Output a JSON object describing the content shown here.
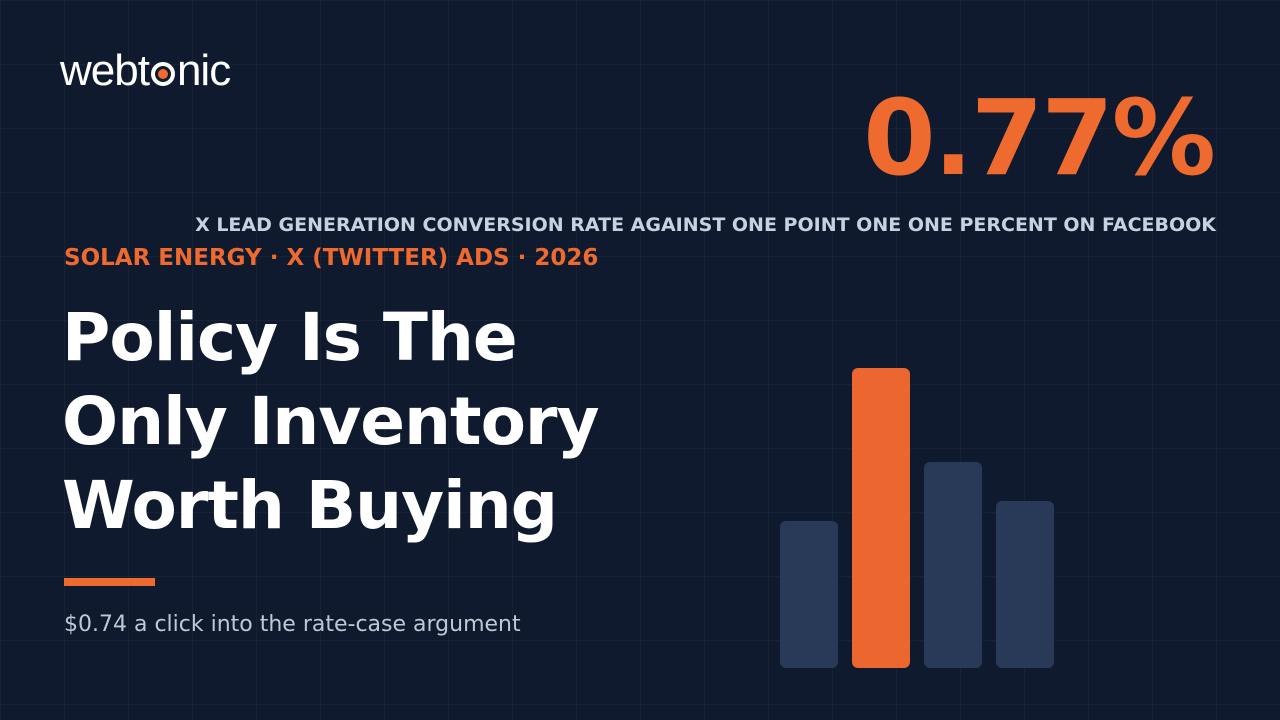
{
  "logo": {
    "start": "webt",
    "end": "nic"
  },
  "stat": {
    "value": "0.77%",
    "caption": "X LEAD GENERATION CONVERSION RATE AGAINST ONE POINT ONE ONE PERCENT ON FACEBOOK"
  },
  "kicker": "SOLAR ENERGY · X (TWITTER) ADS · 2026",
  "headline": [
    "Policy Is The",
    "Only Inventory",
    "Worth Buying"
  ],
  "subtitle": "$0.74 a click into the rate-case argument"
}
